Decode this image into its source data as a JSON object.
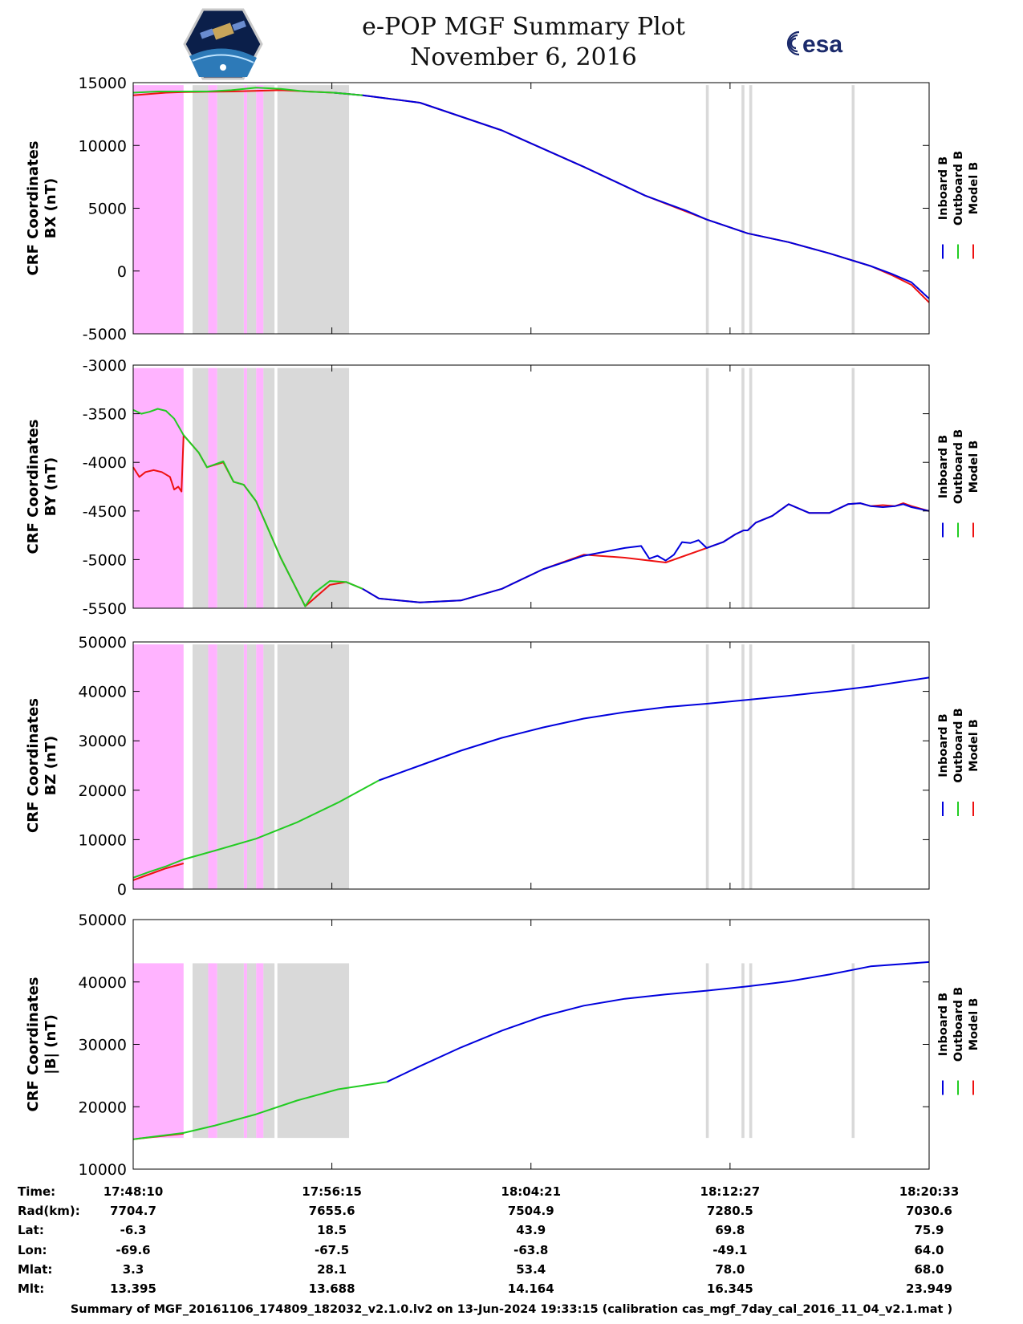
{
  "title": "e-POP MGF Summary Plot",
  "date": "November 6, 2016",
  "logos": {
    "left": "cassiope-mission-logo",
    "right": "esa-logo",
    "right_text": "esa"
  },
  "colors": {
    "inboard": "#0000dd",
    "outboard": "#22cc22",
    "model": "#ee1111",
    "pink": "#ffb3ff",
    "gray": "#d9d9d9"
  },
  "legend": [
    {
      "label": "Inboard B",
      "color": "#0000dd"
    },
    {
      "label": "Outboard B",
      "color": "#22cc22"
    },
    {
      "label": "Model B",
      "color": "#ee1111"
    }
  ],
  "chart_data": [
    {
      "type": "line",
      "ylabel": [
        "CRF Coordinates",
        "BX (nT)"
      ],
      "xlim": [
        0,
        1943
      ],
      "ylim": [
        -5000,
        15000
      ],
      "yticks": [
        -5000,
        0,
        5000,
        10000,
        15000
      ],
      "shaded_range": [
        -5000,
        14800
      ],
      "series": [
        {
          "name": "Model B",
          "x": [
            0,
            80,
            123,
            240,
            360,
            489,
            560,
            700,
            900,
            1100,
            1250,
            1400,
            1500,
            1600,
            1700,
            1800,
            1850,
            1900,
            1943
          ],
          "y": [
            14000,
            14200,
            14250,
            14300,
            14400,
            14200,
            14000,
            13400,
            11200,
            8300,
            6000,
            4100,
            3000,
            2300,
            1400,
            400,
            -300,
            -1100,
            -2500
          ]
        },
        {
          "name": "Inboard B",
          "x": [
            489,
            560,
            700,
            900,
            1100,
            1250,
            1350,
            1400,
            1500,
            1600,
            1700,
            1800,
            1850,
            1900,
            1943
          ],
          "y": [
            14200,
            14000,
            13400,
            11200,
            8300,
            6000,
            4800,
            4100,
            3000,
            2300,
            1400,
            400,
            -200,
            -900,
            -2200
          ]
        },
        {
          "name": "Outboard B",
          "x": [
            0,
            60,
            123,
            180,
            240,
            300,
            360,
            420,
            489,
            560
          ],
          "y": [
            14200,
            14300,
            14300,
            14300,
            14400,
            14600,
            14500,
            14300,
            14200,
            14000
          ]
        }
      ]
    },
    {
      "type": "line",
      "ylabel": [
        "CRF Coordinates",
        "BY (nT)"
      ],
      "xlim": [
        0,
        1943
      ],
      "ylim": [
        -5500,
        -3000
      ],
      "yticks": [
        -5500,
        -5000,
        -4500,
        -4000,
        -3500,
        -3000
      ],
      "shaded_range": [
        -5500,
        -3030
      ],
      "series": [
        {
          "name": "Model B",
          "x": [
            0,
            15,
            30,
            50,
            70,
            90,
            100,
            110,
            118,
            123,
            160,
            180,
            220,
            245,
            270,
            300,
            360,
            420,
            480,
            520,
            560,
            600,
            700,
            800,
            900,
            1000,
            1100,
            1200,
            1300,
            1400,
            1440,
            1470,
            1490,
            1500,
            1520,
            1560,
            1600,
            1650,
            1700,
            1745,
            1775,
            1800,
            1830,
            1860,
            1880,
            1900,
            1943
          ],
          "y": [
            -4050,
            -4150,
            -4100,
            -4080,
            -4100,
            -4150,
            -4280,
            -4250,
            -4300,
            -3720,
            -3900,
            -4050,
            -4000,
            -4200,
            -4230,
            -4400,
            -4980,
            -5480,
            -5260,
            -5230,
            -5300,
            -5400,
            -5440,
            -5420,
            -5300,
            -5100,
            -4950,
            -4980,
            -5030,
            -4880,
            -4820,
            -4740,
            -4700,
            -4700,
            -4620,
            -4550,
            -4430,
            -4520,
            -4520,
            -4430,
            -4420,
            -4450,
            -4440,
            -4450,
            -4420,
            -4450,
            -4500
          ]
        },
        {
          "name": "Inboard B",
          "x": [
            560,
            600,
            700,
            800,
            900,
            1000,
            1100,
            1200,
            1240,
            1260,
            1280,
            1300,
            1320,
            1340,
            1360,
            1380,
            1400,
            1440,
            1470,
            1490,
            1500,
            1520,
            1560,
            1600,
            1650,
            1700,
            1745,
            1775,
            1800,
            1830,
            1860,
            1880,
            1900,
            1943
          ],
          "y": [
            -5300,
            -5400,
            -5440,
            -5420,
            -5300,
            -5100,
            -4960,
            -4880,
            -4860,
            -4990,
            -4960,
            -5010,
            -4950,
            -4820,
            -4830,
            -4800,
            -4880,
            -4820,
            -4740,
            -4700,
            -4700,
            -4620,
            -4550,
            -4430,
            -4520,
            -4520,
            -4430,
            -4420,
            -4450,
            -4460,
            -4450,
            -4430,
            -4460,
            -4500
          ]
        },
        {
          "name": "Outboard B",
          "x": [
            0,
            20,
            40,
            60,
            80,
            100,
            123,
            160,
            180,
            220,
            245,
            270,
            300,
            360,
            420,
            440,
            480,
            520,
            560
          ],
          "y": [
            -3460,
            -3500,
            -3480,
            -3450,
            -3470,
            -3550,
            -3720,
            -3900,
            -4050,
            -3990,
            -4200,
            -4230,
            -4400,
            -4980,
            -5480,
            -5350,
            -5220,
            -5230,
            -5300
          ]
        }
      ]
    },
    {
      "type": "line",
      "ylabel": [
        "CRF Coordinates",
        "BZ (nT)"
      ],
      "xlim": [
        0,
        1943
      ],
      "ylim": [
        0,
        50000
      ],
      "yticks": [
        0,
        10000,
        20000,
        30000,
        40000,
        50000
      ],
      "shaded_range": [
        0,
        49500
      ],
      "series": [
        {
          "name": "Model B",
          "x": [
            0,
            40,
            80,
            123
          ],
          "y": [
            1800,
            3000,
            4200,
            5200
          ]
        },
        {
          "name": "Inboard B",
          "x": [
            600,
            700,
            800,
            900,
            1000,
            1100,
            1200,
            1300,
            1400,
            1500,
            1600,
            1700,
            1800,
            1943
          ],
          "y": [
            22000,
            25000,
            28000,
            30600,
            32700,
            34500,
            35800,
            36800,
            37500,
            38300,
            39100,
            40000,
            41000,
            42800
          ]
        },
        {
          "name": "Outboard B",
          "x": [
            0,
            40,
            80,
            123,
            200,
            300,
            400,
            500,
            600
          ],
          "y": [
            2300,
            3500,
            4600,
            6000,
            7800,
            10200,
            13500,
            17500,
            22000
          ]
        }
      ]
    },
    {
      "type": "line",
      "ylabel": [
        "CRF Coordinates",
        "|B| (nT)"
      ],
      "xlim": [
        0,
        1943
      ],
      "ylim": [
        10000,
        50000
      ],
      "yticks": [
        10000,
        20000,
        30000,
        40000,
        50000
      ],
      "shaded_range": [
        15000,
        43000
      ],
      "series": [
        {
          "name": "Model B",
          "x": [
            0,
            123
          ],
          "y": [
            14800,
            15700
          ]
        },
        {
          "name": "Inboard B",
          "x": [
            620,
            700,
            800,
            900,
            1000,
            1100,
            1200,
            1300,
            1400,
            1500,
            1600,
            1700,
            1800,
            1943
          ],
          "y": [
            24000,
            26500,
            29500,
            32200,
            34500,
            36200,
            37300,
            38000,
            38600,
            39300,
            40100,
            41200,
            42500,
            43200
          ]
        },
        {
          "name": "Outboard B",
          "x": [
            0,
            123,
            200,
            300,
            400,
            500,
            620
          ],
          "y": [
            14800,
            15800,
            17000,
            18800,
            21000,
            22800,
            24000
          ]
        }
      ]
    }
  ],
  "time_axis": {
    "ticks": [
      "17:48:10",
      "17:56:15",
      "18:04:21",
      "18:12:27",
      "18:20:33"
    ],
    "tick_seconds": [
      0,
      485,
      971,
      1457,
      1943
    ]
  },
  "shading": {
    "pink": [
      [
        0,
        123
      ],
      [
        183,
        205
      ],
      [
        270,
        278
      ],
      [
        300,
        318
      ]
    ],
    "gray": [
      [
        145,
        183
      ],
      [
        205,
        270
      ],
      [
        278,
        300
      ],
      [
        318,
        345
      ],
      [
        352,
        527
      ],
      [
        1398,
        1405
      ],
      [
        1485,
        1492
      ],
      [
        1504,
        1511
      ],
      [
        1754,
        1761
      ]
    ]
  },
  "ephemeris": {
    "rows": [
      {
        "label": "Time:",
        "values": [
          "17:48:10",
          "17:56:15",
          "18:04:21",
          "18:12:27",
          "18:20:33"
        ]
      },
      {
        "label": "Rad(km):",
        "values": [
          "7704.7",
          "7655.6",
          "7504.9",
          "7280.5",
          "7030.6"
        ]
      },
      {
        "label": "Lat:",
        "values": [
          "-6.3",
          "18.5",
          "43.9",
          "69.8",
          "75.9"
        ]
      },
      {
        "label": "Lon:",
        "values": [
          "-69.6",
          "-67.5",
          "-63.8",
          "-49.1",
          "64.0"
        ]
      },
      {
        "label": "Mlat:",
        "values": [
          "3.3",
          "28.1",
          "53.4",
          "78.0",
          "68.0"
        ]
      },
      {
        "label": "Mlt:",
        "values": [
          "13.395",
          "13.688",
          "14.164",
          "16.345",
          "23.949"
        ]
      }
    ]
  },
  "footer": "Summary of MGF_20161106_174809_182032_v2.1.0.lv2 on 13-Jun-2024 19:33:15 (calibration cas_mgf_7day_cal_2016_11_04_v2.1.mat )"
}
